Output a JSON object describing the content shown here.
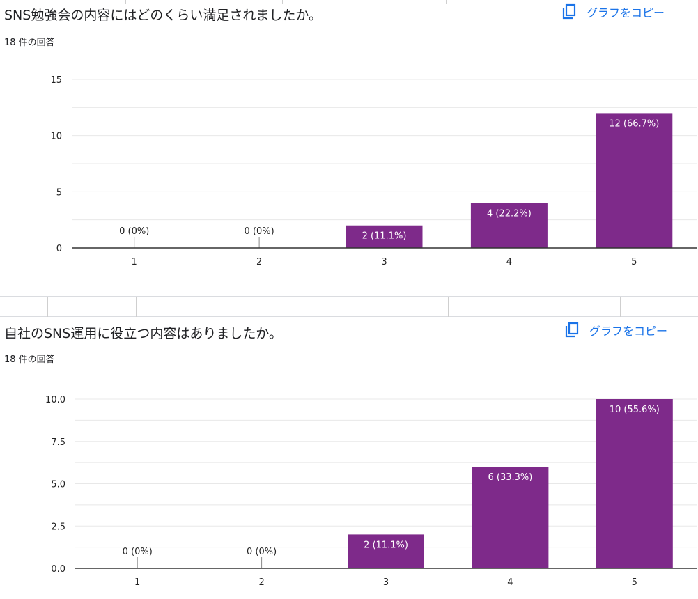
{
  "charts": [
    {
      "title": "SNS勉強会の内容にはどのくらい満足されましたか。",
      "response_count": "18 件の回答",
      "copy_label": "グラフをコピー",
      "copy_icon": "copy-icon"
    },
    {
      "title": "自社のSNS運用に役立つ内容はありましたか。",
      "response_count": "18 件の回答",
      "copy_label": "グラフをコピー",
      "copy_icon": "copy-icon"
    }
  ],
  "colors": {
    "bar": "#7e2a8a",
    "grid": "#e8e8e8",
    "axis": "#333333",
    "link": "#1a73e8"
  },
  "chart_data": [
    {
      "type": "bar",
      "title": "SNS勉強会の内容にはどのくらい満足されましたか。",
      "categories": [
        "1",
        "2",
        "3",
        "4",
        "5"
      ],
      "values": [
        0,
        0,
        2,
        4,
        12
      ],
      "data_labels": [
        "0 (0%)",
        "0 (0%)",
        "2 (11.1%)",
        "4 (22.2%)",
        "12 (66.7%)"
      ],
      "ylim": [
        0,
        15
      ],
      "yticks": [
        0,
        5,
        10,
        15
      ],
      "ytick_labels": [
        "0",
        "5",
        "10",
        "15"
      ],
      "grid": true,
      "xlabel": "",
      "ylabel": ""
    },
    {
      "type": "bar",
      "title": "自社のSNS運用に役立つ内容はありましたか。",
      "categories": [
        "1",
        "2",
        "3",
        "4",
        "5"
      ],
      "values": [
        0,
        0,
        2,
        6,
        10
      ],
      "data_labels": [
        "0 (0%)",
        "0 (0%)",
        "2 (11.1%)",
        "6 (33.3%)",
        "10 (55.6%)"
      ],
      "ylim": [
        0,
        10
      ],
      "yticks": [
        0,
        2.5,
        5,
        7.5,
        10
      ],
      "ytick_labels": [
        "0.0",
        "2.5",
        "5.0",
        "7.5",
        "10.0"
      ],
      "grid": true,
      "xlabel": "",
      "ylabel": ""
    }
  ]
}
